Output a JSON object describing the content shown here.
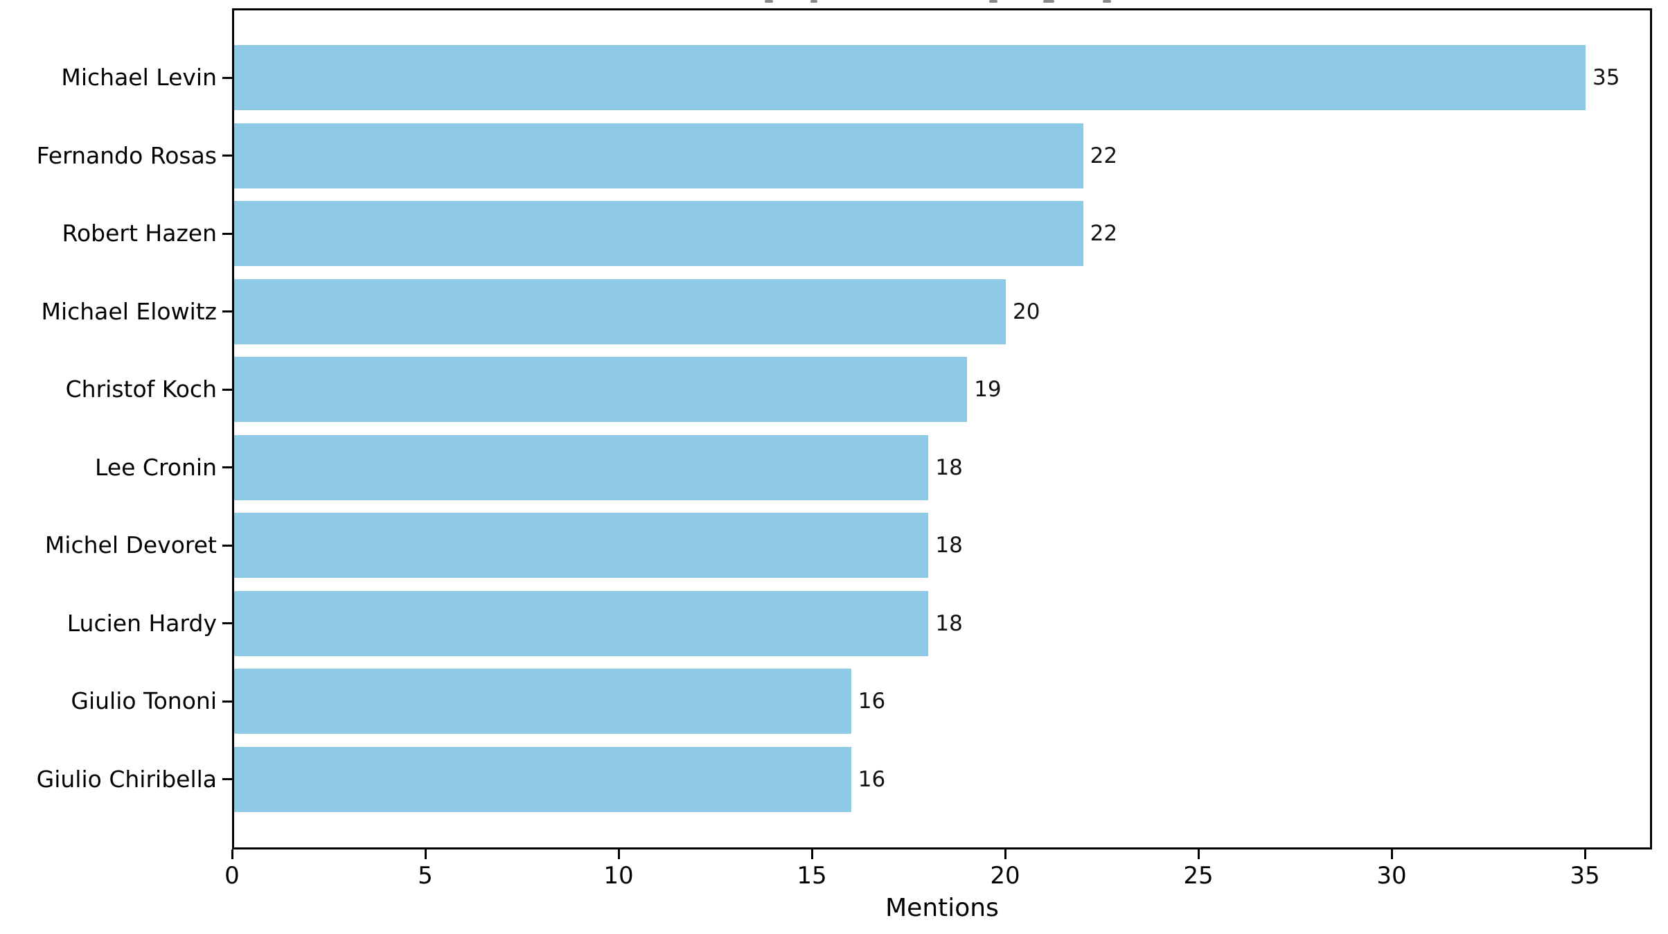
{
  "chart_data": {
    "type": "bar",
    "orientation": "horizontal",
    "categories": [
      "Michael Levin",
      "Fernando Rosas",
      "Robert Hazen",
      "Michael Elowitz",
      "Christof Koch",
      "Lee Cronin",
      "Michel Devoret",
      "Lucien Hardy",
      "Giulio Tononi",
      "Giulio Chiribella"
    ],
    "values": [
      35,
      22,
      22,
      20,
      19,
      18,
      18,
      18,
      16,
      16
    ],
    "bar_value_labels": [
      "35",
      "22",
      "22",
      "20",
      "19",
      "18",
      "18",
      "18",
      "16",
      "16"
    ],
    "xlabel": "Mentions",
    "ylabel": "",
    "x_ticks": [
      0,
      5,
      10,
      15,
      20,
      25,
      30,
      35
    ],
    "x_tick_labels": [
      "0",
      "5",
      "10",
      "15",
      "20",
      "25",
      "30",
      "35"
    ],
    "xlim": [
      0,
      36.75
    ],
    "grid": false,
    "legend": "none",
    "bar_color": "#8EC9E6",
    "axis_color": "#000000",
    "text_color": "#000000",
    "background_color": "#FFFFFF"
  }
}
